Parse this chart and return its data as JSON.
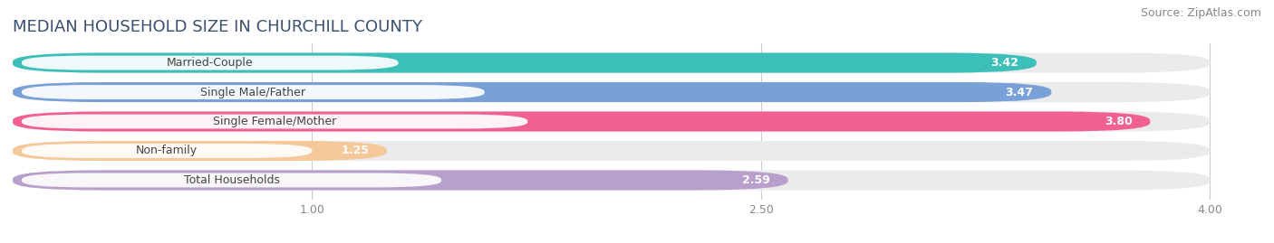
{
  "title": "MEDIAN HOUSEHOLD SIZE IN CHURCHILL COUNTY",
  "source": "Source: ZipAtlas.com",
  "categories": [
    "Married-Couple",
    "Single Male/Father",
    "Single Female/Mother",
    "Non-family",
    "Total Households"
  ],
  "values": [
    3.42,
    3.47,
    3.8,
    1.25,
    2.59
  ],
  "bar_colors": [
    "#3bbfb8",
    "#7aa0d8",
    "#f06090",
    "#f5c89a",
    "#b89fcc"
  ],
  "bar_bg_colors": [
    "#ebebeb",
    "#ebebeb",
    "#ebebeb",
    "#ebebeb",
    "#ebebeb"
  ],
  "xlim": [
    0,
    4.15
  ],
  "xmin": 0.0,
  "xticks": [
    1.0,
    2.5,
    4.0
  ],
  "xtick_labels": [
    "1.00",
    "2.50",
    "4.00"
  ],
  "title_fontsize": 13,
  "source_fontsize": 9,
  "label_fontsize": 9,
  "value_fontsize": 9,
  "tick_fontsize": 9,
  "title_color": "#3a5070",
  "label_color": "#444444",
  "value_color": "#ffffff",
  "source_color": "#888888",
  "tick_color": "#888888",
  "background_color": "#ffffff",
  "grid_color": "#cccccc"
}
